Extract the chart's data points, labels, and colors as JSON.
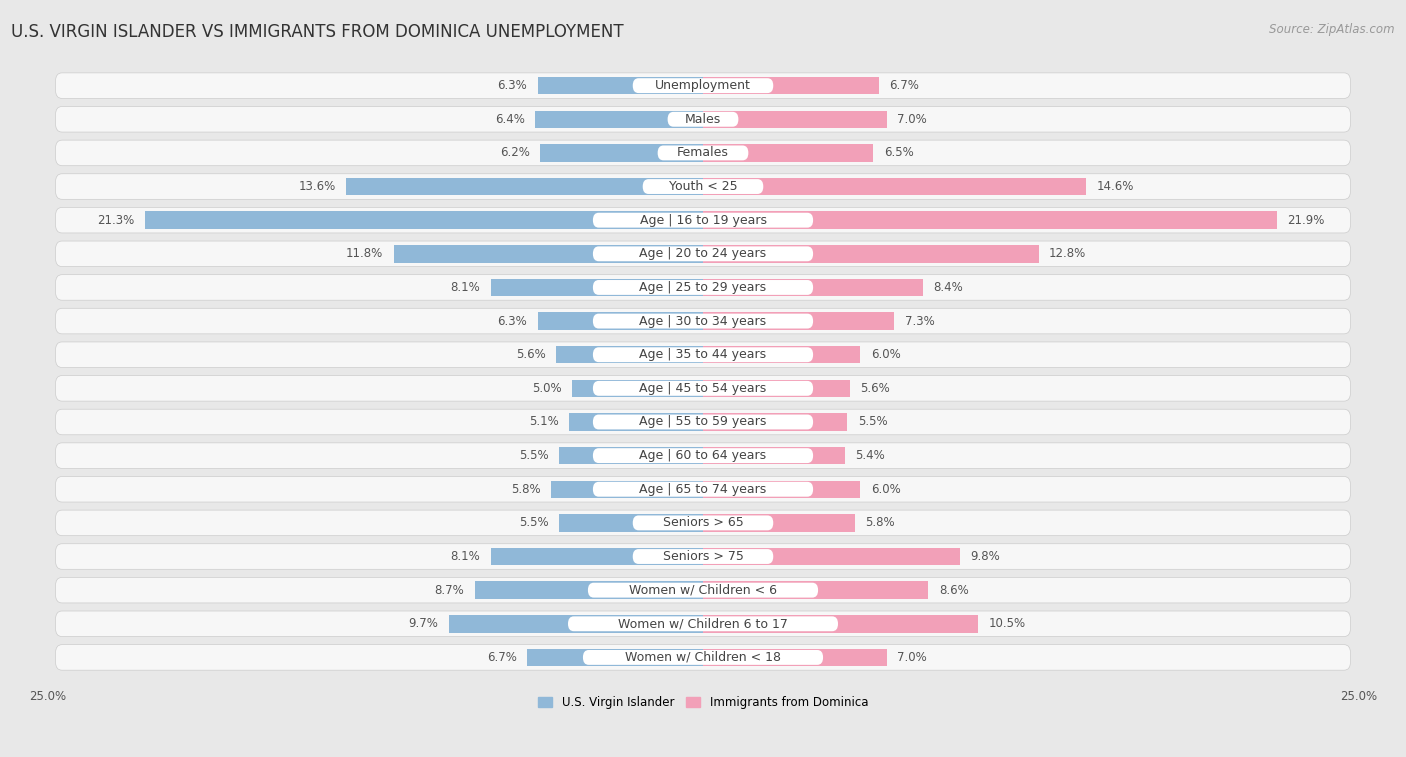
{
  "title": "U.S. VIRGIN ISLANDER VS IMMIGRANTS FROM DOMINICA UNEMPLOYMENT",
  "source": "Source: ZipAtlas.com",
  "categories": [
    "Unemployment",
    "Males",
    "Females",
    "Youth < 25",
    "Age | 16 to 19 years",
    "Age | 20 to 24 years",
    "Age | 25 to 29 years",
    "Age | 30 to 34 years",
    "Age | 35 to 44 years",
    "Age | 45 to 54 years",
    "Age | 55 to 59 years",
    "Age | 60 to 64 years",
    "Age | 65 to 74 years",
    "Seniors > 65",
    "Seniors > 75",
    "Women w/ Children < 6",
    "Women w/ Children 6 to 17",
    "Women w/ Children < 18"
  ],
  "left_values": [
    6.3,
    6.4,
    6.2,
    13.6,
    21.3,
    11.8,
    8.1,
    6.3,
    5.6,
    5.0,
    5.1,
    5.5,
    5.8,
    5.5,
    8.1,
    8.7,
    9.7,
    6.7
  ],
  "right_values": [
    6.7,
    7.0,
    6.5,
    14.6,
    21.9,
    12.8,
    8.4,
    7.3,
    6.0,
    5.6,
    5.5,
    5.4,
    6.0,
    5.8,
    9.8,
    8.6,
    10.5,
    7.0
  ],
  "left_color": "#90b8d8",
  "right_color": "#f2a0b8",
  "left_label": "U.S. Virgin Islander",
  "right_label": "Immigrants from Dominica",
  "xlim": 25.0,
  "bg_color": "#e8e8e8",
  "row_color_even": "#f5f5f5",
  "row_color_odd": "#ebebeb",
  "label_bg_color": "#ffffff",
  "title_fontsize": 12,
  "label_fontsize": 9,
  "value_fontsize": 8.5,
  "source_fontsize": 8.5
}
